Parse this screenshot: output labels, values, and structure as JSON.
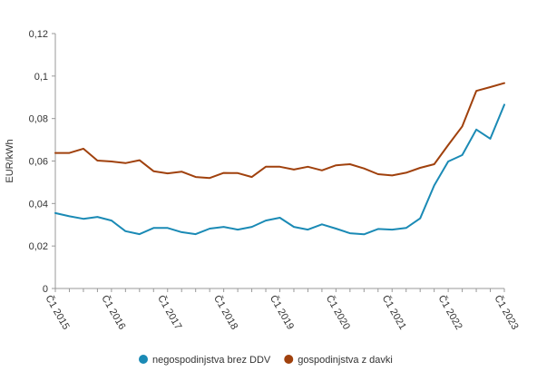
{
  "chart_data": {
    "type": "line",
    "title": "",
    "xlabel": "",
    "ylabel": "EUR/kWh",
    "ylim": [
      0,
      0.12
    ],
    "y_ticks": [
      {
        "value": 0,
        "label": "0"
      },
      {
        "value": 0.02,
        "label": "0,02"
      },
      {
        "value": 0.04,
        "label": "0,04"
      },
      {
        "value": 0.06,
        "label": "0,06"
      },
      {
        "value": 0.08,
        "label": "0,08"
      },
      {
        "value": 0.1,
        "label": "0,1"
      },
      {
        "value": 0.12,
        "label": "0,12"
      }
    ],
    "x": [
      "Č1 2015",
      "Č2 2015",
      "Č3 2015",
      "Č4 2015",
      "Č1 2016",
      "Č2 2016",
      "Č3 2016",
      "Č4 2016",
      "Č1 2017",
      "Č2 2017",
      "Č3 2017",
      "Č4 2017",
      "Č1 2018",
      "Č2 2018",
      "Č3 2018",
      "Č4 2018",
      "Č1 2019",
      "Č2 2019",
      "Č3 2019",
      "Č4 2019",
      "Č1 2020",
      "Č2 2020",
      "Č3 2020",
      "Č4 2020",
      "Č1 2021",
      "Č2 2021",
      "Č3 2021",
      "Č4 2021",
      "Č1 2022",
      "Č2 2022",
      "Č3 2022",
      "Č4 2022",
      "Č1 2023"
    ],
    "x_tick_labels": [
      "Č1 2015",
      "Č1 2016",
      "Č1 2017",
      "Č1 2018",
      "Č1 2019",
      "Č1 2020",
      "Č1 2021",
      "Č1 2022",
      "Č1 2023"
    ],
    "grid": false,
    "legend_position": "bottom",
    "series": [
      {
        "name": "negospodinjstva brez DDV",
        "color": "#1a8ab5",
        "values": [
          0.0355,
          0.034,
          0.0328,
          0.0337,
          0.032,
          0.027,
          0.0256,
          0.0285,
          0.0285,
          0.0265,
          0.0256,
          0.0282,
          0.029,
          0.0277,
          0.029,
          0.032,
          0.0333,
          0.029,
          0.0277,
          0.0302,
          0.0282,
          0.026,
          0.0255,
          0.028,
          0.0277,
          0.0285,
          0.033,
          0.0485,
          0.0598,
          0.0628,
          0.0748,
          0.0705,
          0.0865
        ]
      },
      {
        "name": "gospodinjstva z davki",
        "color": "#a0410d",
        "values": [
          0.0638,
          0.0638,
          0.0658,
          0.0602,
          0.0598,
          0.059,
          0.0604,
          0.0552,
          0.0542,
          0.055,
          0.0525,
          0.052,
          0.0544,
          0.0543,
          0.0525,
          0.0573,
          0.0573,
          0.056,
          0.0573,
          0.0556,
          0.058,
          0.0585,
          0.0565,
          0.0538,
          0.0532,
          0.0545,
          0.0568,
          0.0585,
          0.0675,
          0.0763,
          0.093,
          0.0948,
          0.0967
        ]
      }
    ]
  }
}
